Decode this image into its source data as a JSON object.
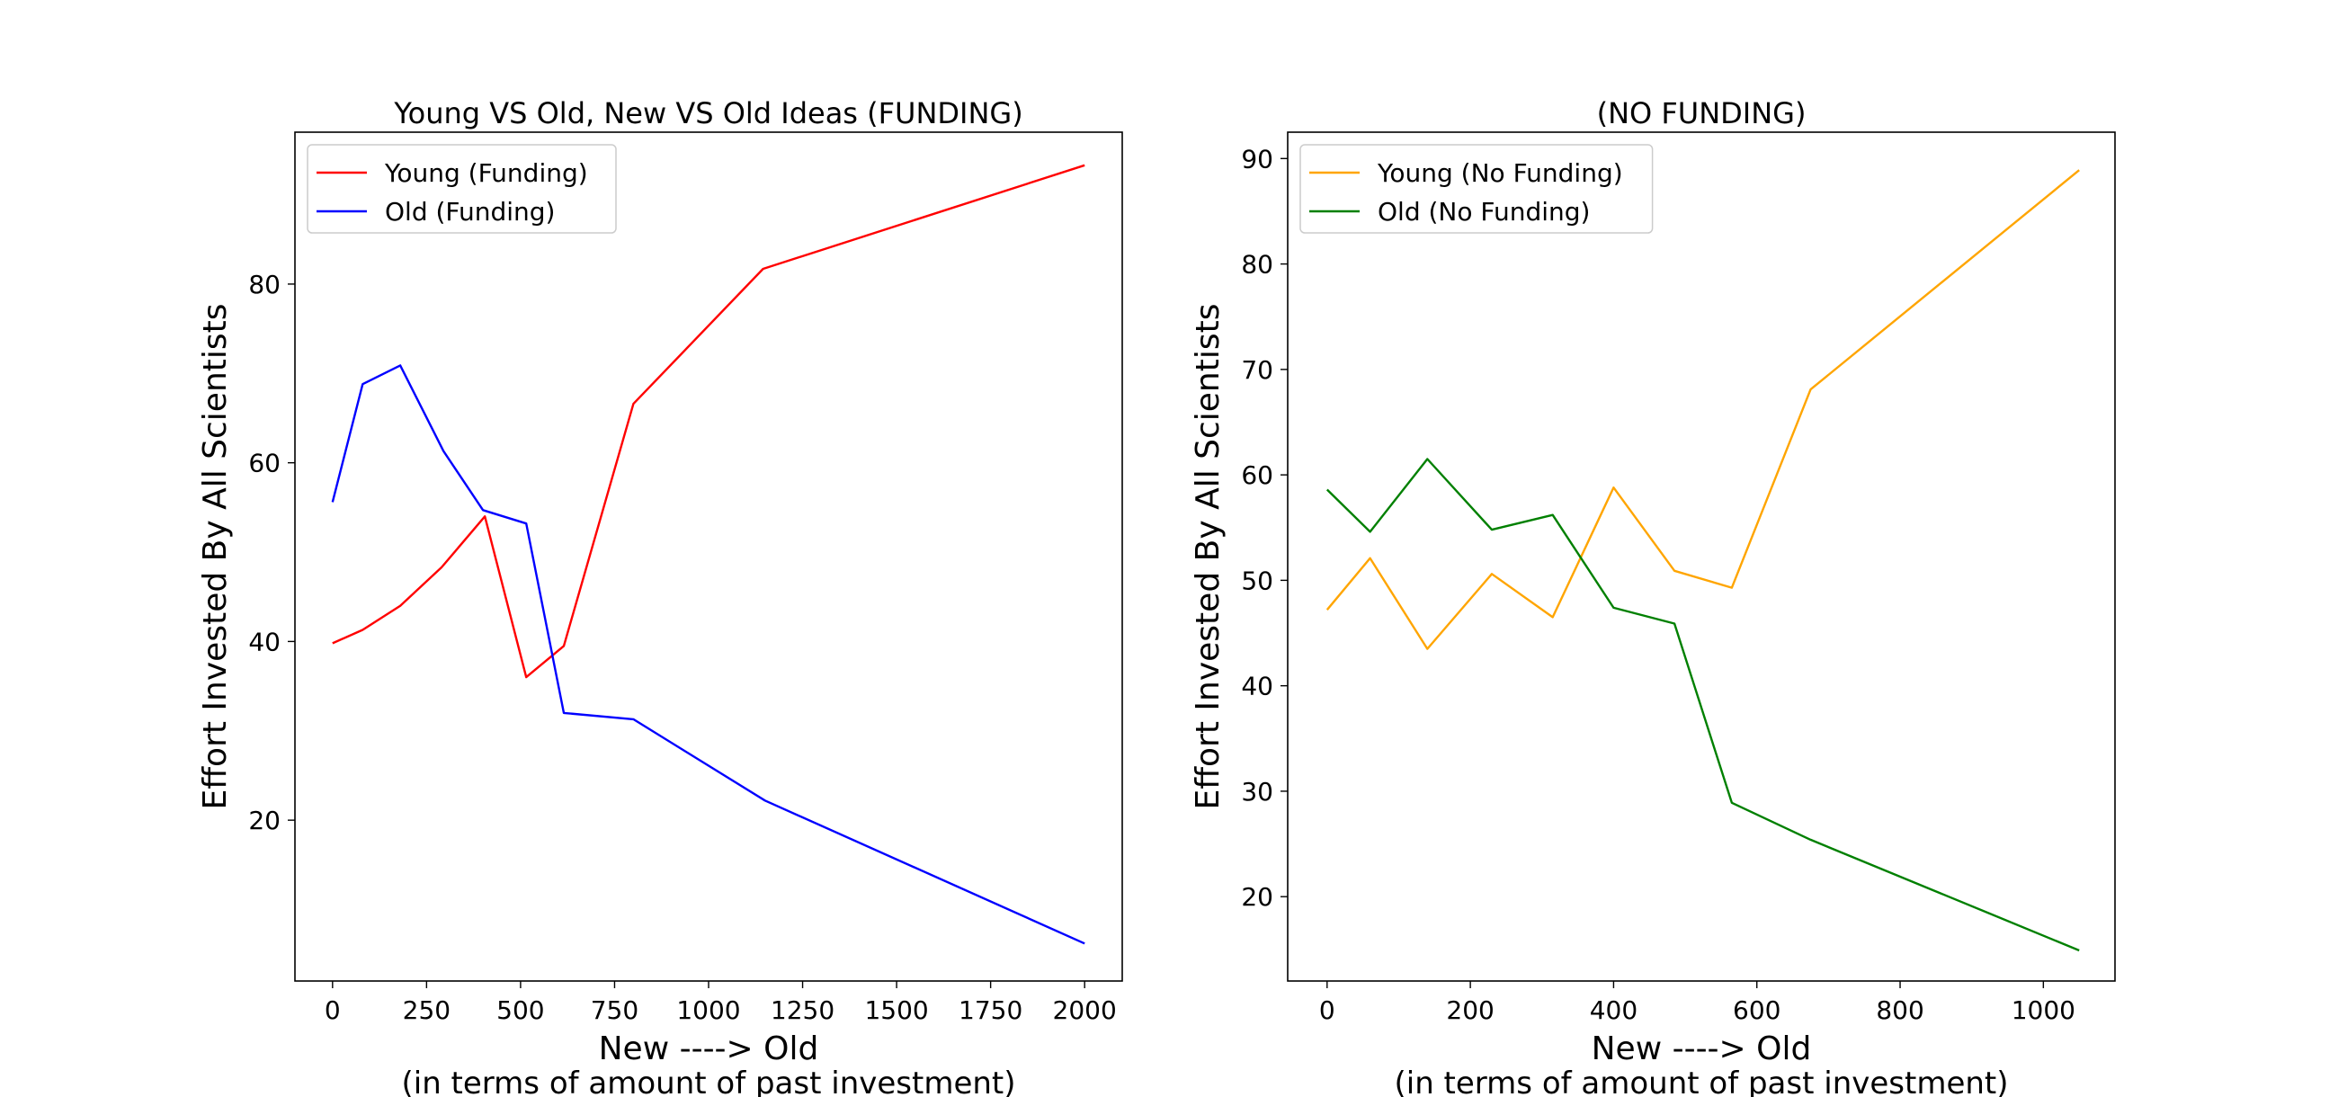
{
  "chart_data": [
    {
      "type": "line",
      "title": "Young VS Old, New VS Old Ideas (FUNDING)",
      "xlabel": "New ----> Old",
      "xlabel_sub": "(in terms of amount of past investment)",
      "ylabel": "Effort Invested By All Scientists",
      "xlim": [
        -100,
        2100
      ],
      "ylim": [
        2,
        97
      ],
      "xticks": [
        0,
        250,
        500,
        750,
        1000,
        1250,
        1500,
        1750,
        2000
      ],
      "yticks": [
        20,
        40,
        60,
        80
      ],
      "grid": false,
      "legend_position": "top-left",
      "series": [
        {
          "name": "Young (Funding)",
          "color": "#ff0000",
          "x": [
            0,
            80,
            180,
            290,
            405,
            515,
            615,
            800,
            1145,
            2000
          ],
          "y": [
            39.8,
            41.3,
            44.0,
            48.3,
            54.0,
            36.0,
            39.5,
            66.6,
            81.7,
            93.3
          ]
        },
        {
          "name": "Old (Funding)",
          "color": "#0000ff",
          "x": [
            0,
            80,
            180,
            295,
            400,
            515,
            615,
            800,
            1150,
            2000
          ],
          "y": [
            55.6,
            68.8,
            70.9,
            61.3,
            54.7,
            53.2,
            32.0,
            31.3,
            22.2,
            6.2
          ]
        }
      ]
    },
    {
      "type": "line",
      "title": "(NO FUNDING)",
      "xlabel": "New ----> Old",
      "xlabel_sub": "(in terms of amount of past investment)",
      "ylabel": "Effort Invested By All Scientists",
      "xlim": [
        -55,
        1100
      ],
      "ylim": [
        12,
        92.5
      ],
      "xticks": [
        0,
        200,
        400,
        600,
        800,
        1000
      ],
      "yticks": [
        20,
        30,
        40,
        50,
        60,
        70,
        80,
        90
      ],
      "grid": false,
      "legend_position": "top-left",
      "series": [
        {
          "name": "Young (No Funding)",
          "color": "#ffa500",
          "x": [
            0,
            60,
            140,
            230,
            315,
            400,
            485,
            565,
            675,
            1050
          ],
          "y": [
            47.2,
            52.1,
            43.5,
            50.6,
            46.5,
            58.8,
            50.9,
            49.3,
            68.1,
            88.9
          ]
        },
        {
          "name": "Old (No Funding)",
          "color": "#008000",
          "x": [
            0,
            60,
            140,
            230,
            315,
            400,
            485,
            565,
            675,
            1050
          ],
          "y": [
            58.6,
            54.6,
            61.5,
            54.8,
            56.2,
            47.4,
            45.9,
            28.9,
            25.4,
            14.9
          ]
        }
      ]
    }
  ]
}
